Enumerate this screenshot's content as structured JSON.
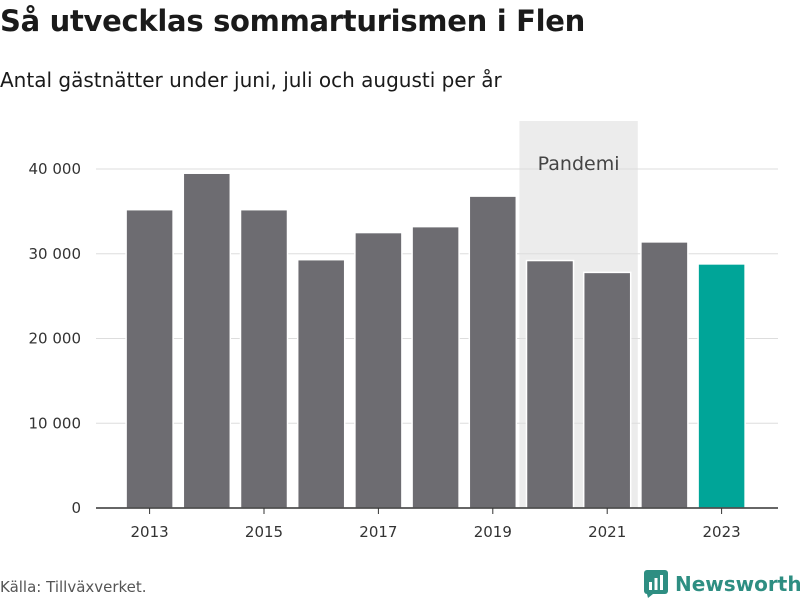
{
  "colors": {
    "bar": "#6d6c71",
    "highlight": "#00a598",
    "band": "#ececec",
    "grid": "#dddddd",
    "axis": "#333333"
  },
  "source_text": "Källa: Tillväxverket.",
  "brand": {
    "name": "Newsworthy",
    "icon": "bar-chart-logo-icon"
  },
  "chart_data": {
    "type": "bar",
    "title": "Så utvecklas sommarturismen i Flen",
    "subtitle": "Antal gästnätter under juni, juli och augusti per år",
    "xlabel": "",
    "ylabel": "",
    "categories": [
      2013,
      2014,
      2015,
      2016,
      2017,
      2018,
      2019,
      2020,
      2021,
      2022,
      2023
    ],
    "values": [
      35200,
      39500,
      35200,
      29300,
      32500,
      33200,
      36800,
      29200,
      27800,
      31400,
      28800
    ],
    "highlight_category": 2023,
    "ylim": [
      0,
      42000
    ],
    "y_ticks": [
      0,
      10000,
      20000,
      30000,
      40000
    ],
    "y_tick_labels": [
      "0",
      "10 000",
      "20 000",
      "30 000",
      "40 000"
    ],
    "x_ticks": [
      2013,
      2015,
      2017,
      2019,
      2021,
      2023
    ],
    "x_tick_labels": [
      "2013",
      "2015",
      "2017",
      "2019",
      "2021",
      "2023"
    ],
    "grid": true,
    "legend": "none",
    "annotation": {
      "label": "Pandemi",
      "from": 2020,
      "to": 2021
    }
  }
}
